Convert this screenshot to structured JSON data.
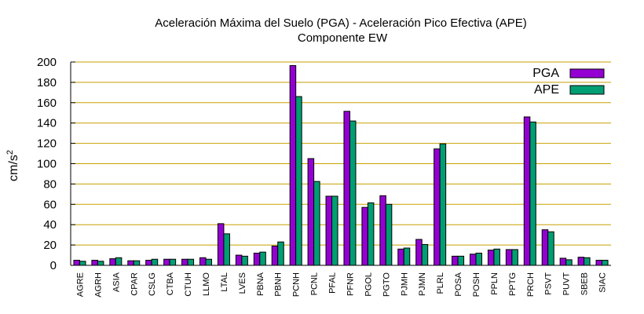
{
  "chart_data": {
    "type": "bar",
    "title": "Aceleración Máxima del Suelo (PGA) -  Aceleración Pico Efectiva (APE)",
    "subtitle": "Componente EW",
    "xlabel": "",
    "ylabel": "cm/s",
    "ylabel_superscript": "2",
    "ylim": [
      0,
      200
    ],
    "yticks": [
      0,
      20,
      40,
      60,
      80,
      100,
      120,
      140,
      160,
      180,
      200
    ],
    "grid": "horizontal",
    "legend_position": "top-right",
    "categories": [
      "AGRE",
      "AGRH",
      "ASIA",
      "CPAR",
      "CSLG",
      "CTBA",
      "CTUH",
      "LLMO",
      "LTAL",
      "LVES",
      "PBNA",
      "PBNH",
      "PCNH",
      "PCNL",
      "PFAL",
      "PFNR",
      "PGOL",
      "PGTO",
      "PJMH",
      "PJMN",
      "PLRL",
      "POSA",
      "POSH",
      "PPLN",
      "PPTG",
      "PRCH",
      "PSVT",
      "PUVT",
      "SBEB",
      "SIAC"
    ],
    "series": [
      {
        "name": "PGA",
        "color": "#9400d3",
        "values": [
          5,
          5,
          6.5,
          4.5,
          5,
          6,
          6,
          7.5,
          41,
          10,
          12,
          19,
          196.5,
          105,
          68,
          151.5,
          57,
          68.5,
          16,
          25.5,
          114.5,
          9,
          11,
          15,
          15.5,
          146,
          35,
          7,
          8,
          5
        ]
      },
      {
        "name": "APE",
        "color": "#009e73",
        "values": [
          4,
          4,
          7.5,
          4.5,
          6,
          6,
          6,
          6,
          31,
          9,
          13,
          23,
          166,
          82.5,
          68,
          142,
          61.5,
          60,
          17,
          20.5,
          119.5,
          9,
          12,
          16,
          15.5,
          141,
          33,
          5.5,
          7.5,
          5
        ]
      }
    ]
  }
}
